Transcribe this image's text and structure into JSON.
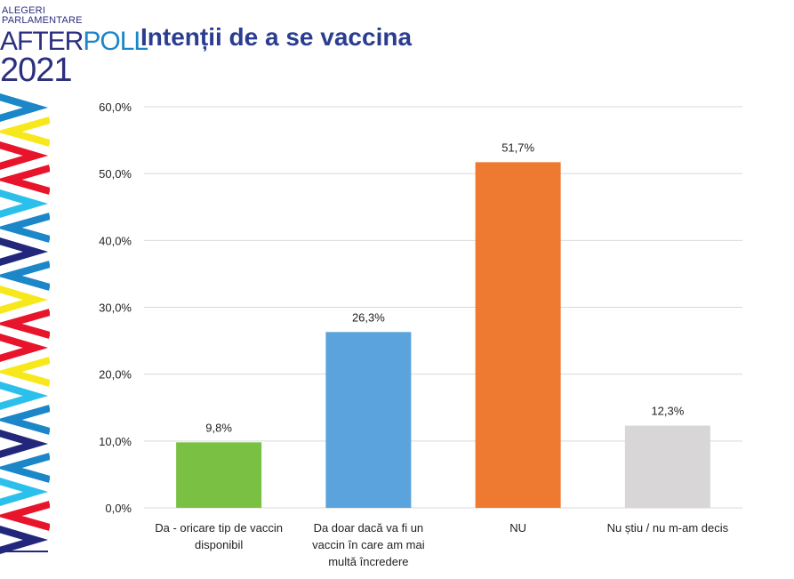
{
  "logo": {
    "line1": "ALEGERI",
    "line2": "PARLAMENTARE",
    "after": "AFTER",
    "poll": "POLL",
    "year": "2021"
  },
  "slide_title": "Intenții de a se vaccina",
  "colors": {
    "navy": "#2b2f7e",
    "blue": "#1b86c8",
    "stripe_yellow": "#f7e81c",
    "stripe_red": "#e8142b",
    "stripe_cyan": "#2bc0ec",
    "stripe_blue": "#1b86c8",
    "stripe_navy": "#23277b",
    "grid": "#d9d9d9",
    "axis_text": "#222222"
  },
  "chart_data": {
    "type": "bar",
    "title": "",
    "xlabel": "",
    "ylabel": "",
    "ylim": [
      0,
      60
    ],
    "yticks": [
      0,
      10,
      20,
      30,
      40,
      50,
      60
    ],
    "ytick_labels": [
      "0,0%",
      "10,0%",
      "20,0%",
      "30,0%",
      "40,0%",
      "50,0%",
      "60,0%"
    ],
    "grid": true,
    "categories": [
      [
        "Da - oricare tip de vaccin",
        "disponibil"
      ],
      [
        "Da doar  dacă va fi un",
        "vaccin în care am mai",
        "multă încredere"
      ],
      [
        "NU"
      ],
      [
        "Nu știu / nu m-am decis"
      ]
    ],
    "values": [
      9.8,
      26.3,
      51.7,
      12.3
    ],
    "value_labels": [
      "9,8%",
      "26,3%",
      "51,7%",
      "12,3%"
    ],
    "bar_colors": [
      "#7ac143",
      "#5ba3dc",
      "#ee7930",
      "#d9d6d8"
    ]
  }
}
